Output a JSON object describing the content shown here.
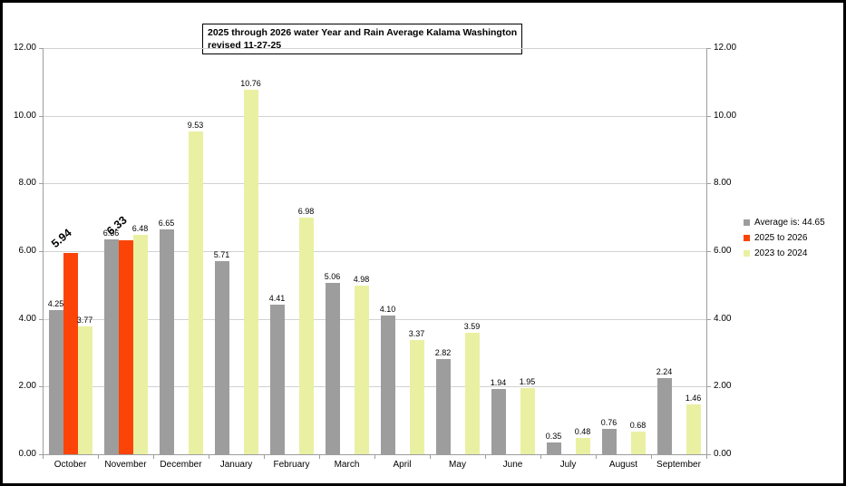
{
  "title": {
    "line1": "2025 through 2026 water Year and Rain Average Kalama Washington",
    "line2": "revised 11-27-25"
  },
  "legend": {
    "position": "right",
    "items": [
      {
        "label": "Average is: 44.65",
        "color": "#9d9d9d"
      },
      {
        "label": "2025 to 2026",
        "color": "#fc4408"
      },
      {
        "label": "2023 to 2024",
        "color": "#eaf0a2"
      }
    ]
  },
  "axes": {
    "y_tick_labels": [
      "0.00",
      "2.00",
      "4.00",
      "6.00",
      "8.00",
      "10.00",
      "12.00"
    ],
    "y_labels_on_both_sides": true
  },
  "chart_data": {
    "type": "bar",
    "title": "2025 through 2026 water Year and Rain Average Kalama Washington revised 11-27-25",
    "categories": [
      "October",
      "November",
      "December",
      "January",
      "February",
      "March",
      "April",
      "May",
      "June",
      "July",
      "August",
      "September"
    ],
    "series": [
      {
        "name": "Average is: 44.65",
        "color": "#9d9d9d",
        "data_labels": "plain",
        "values": [
          4.25,
          6.36,
          6.65,
          5.71,
          4.41,
          5.06,
          4.1,
          2.82,
          1.94,
          0.35,
          0.76,
          2.24
        ]
      },
      {
        "name": "2025 to 2026",
        "color": "#fc4408",
        "data_labels": "bold-rotated",
        "values": [
          5.94,
          6.33,
          null,
          null,
          null,
          null,
          null,
          null,
          null,
          null,
          null,
          null
        ]
      },
      {
        "name": "2023 to 2024",
        "color": "#eaf0a2",
        "data_labels": "plain",
        "values": [
          3.77,
          6.48,
          9.53,
          10.76,
          6.98,
          4.98,
          3.37,
          3.59,
          1.95,
          0.48,
          0.68,
          1.46
        ]
      }
    ],
    "xlabel": "",
    "ylabel": "",
    "ylim": [
      0,
      12
    ],
    "y_step": 2,
    "grid": true,
    "legend_position": "right",
    "value_format": "0.00"
  }
}
